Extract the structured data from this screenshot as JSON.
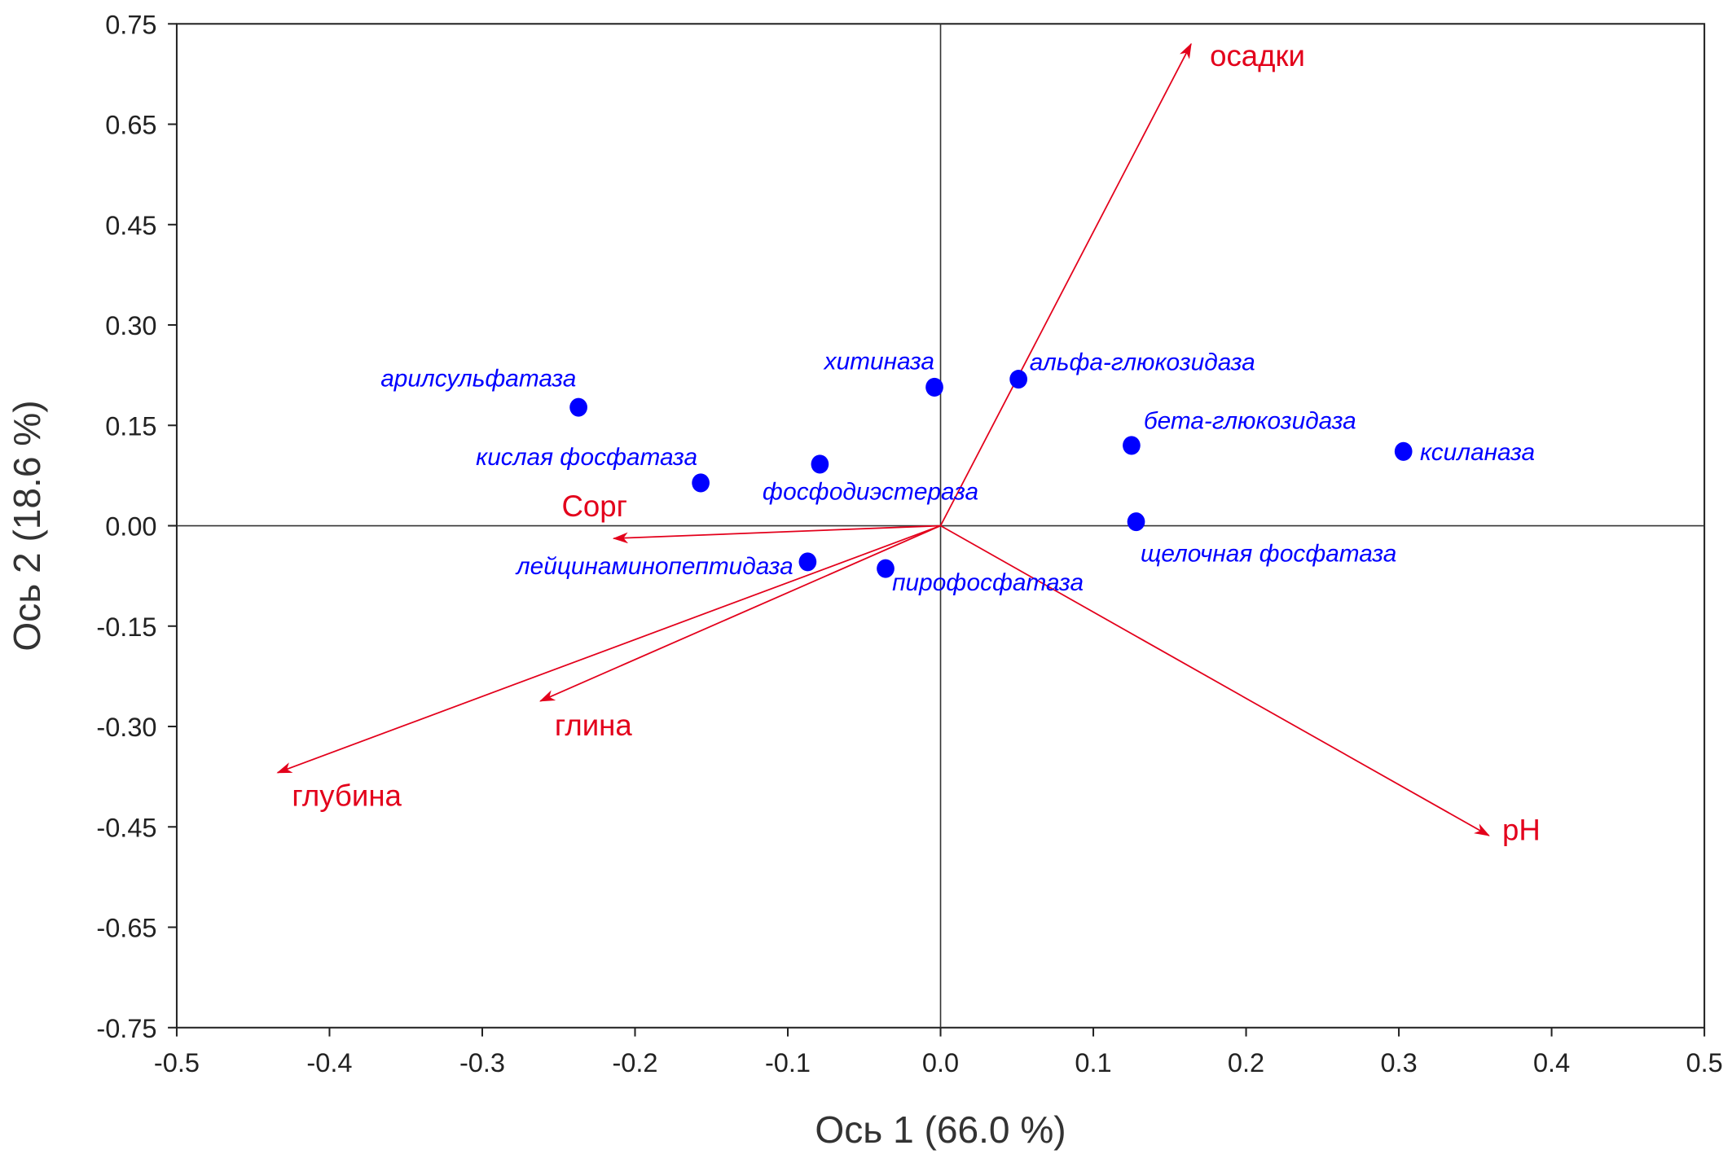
{
  "chart_data": {
    "type": "scatter",
    "subtype": "biplot",
    "title": "",
    "xlabel": "Ось 1 (66.0 %)",
    "ylabel": "Ось 2 (18.6 %)",
    "xlim": [
      -0.5,
      0.5
    ],
    "ylim": [
      -0.75,
      0.75
    ],
    "x_ticks": [
      "-0.5",
      "-0.4",
      "-0.3",
      "-0.2",
      "-0.1",
      "0.0",
      "0.1",
      "0.2",
      "0.3",
      "0.4",
      "0.5"
    ],
    "y_ticks": [
      "0.75",
      "0.65",
      "0.45",
      "0.30",
      "0.15",
      "0.00",
      "-0.15",
      "-0.30",
      "-0.45",
      "-0.65",
      "-0.75"
    ],
    "grid": false,
    "point_color": "#0000ff",
    "arrow_color": "#e3001b",
    "points": [
      {
        "label": "арилсульфатаза",
        "x": -0.237,
        "y": 0.177
      },
      {
        "label": "кислая фосфатаза",
        "x": -0.157,
        "y": 0.064
      },
      {
        "label": "фосфодиэстераза",
        "x": -0.079,
        "y": 0.092
      },
      {
        "label": "хитиназа",
        "x": -0.004,
        "y": 0.207
      },
      {
        "label": "альфа-глюкозидаза",
        "x": 0.051,
        "y": 0.219
      },
      {
        "label": "бета-глюкозидаза",
        "x": 0.125,
        "y": 0.12
      },
      {
        "label": "ксиланаза",
        "x": 0.303,
        "y": 0.111
      },
      {
        "label": "щелочная фосфатаза",
        "x": 0.128,
        "y": 0.006
      },
      {
        "label": "лейцинаминопептидаза",
        "x": -0.087,
        "y": -0.054
      },
      {
        "label": "пирофосфатаза",
        "x": -0.036,
        "y": -0.064
      }
    ],
    "arrows": [
      {
        "label": "осадки",
        "x": 0.164,
        "y": 0.72
      },
      {
        "label": "pH",
        "x": 0.359,
        "y": -0.463
      },
      {
        "label": "глубина",
        "x": -0.434,
        "y": -0.369
      },
      {
        "label": "глина",
        "x": -0.262,
        "y": -0.262
      },
      {
        "label": "Сорг",
        "x": -0.214,
        "y": -0.019
      }
    ]
  }
}
